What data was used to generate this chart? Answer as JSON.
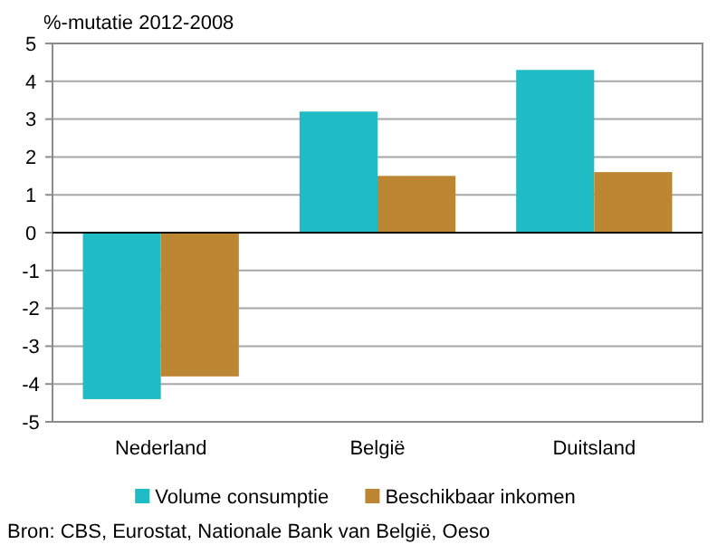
{
  "chart_data": {
    "type": "bar",
    "ylabel": "%-mutatie 2012-2008",
    "categories": [
      "Nederland",
      "België",
      "Duitsland"
    ],
    "series": [
      {
        "name": "Volume consumptie",
        "color": "#1fbcc6",
        "values": [
          -4.4,
          3.2,
          4.3
        ]
      },
      {
        "name": "Beschikbaar inkomen",
        "color": "#bd8632",
        "values": [
          -3.8,
          1.5,
          1.6
        ]
      }
    ],
    "ylim": [
      -5,
      5
    ],
    "yticks": [
      -5,
      -4,
      -3,
      -2,
      -1,
      0,
      1,
      2,
      3,
      4,
      5
    ],
    "grid": "y",
    "legend": "bottom",
    "annotations": [
      "Bron: CBS, Eurostat, Nationale Bank van België, Oeso"
    ]
  }
}
